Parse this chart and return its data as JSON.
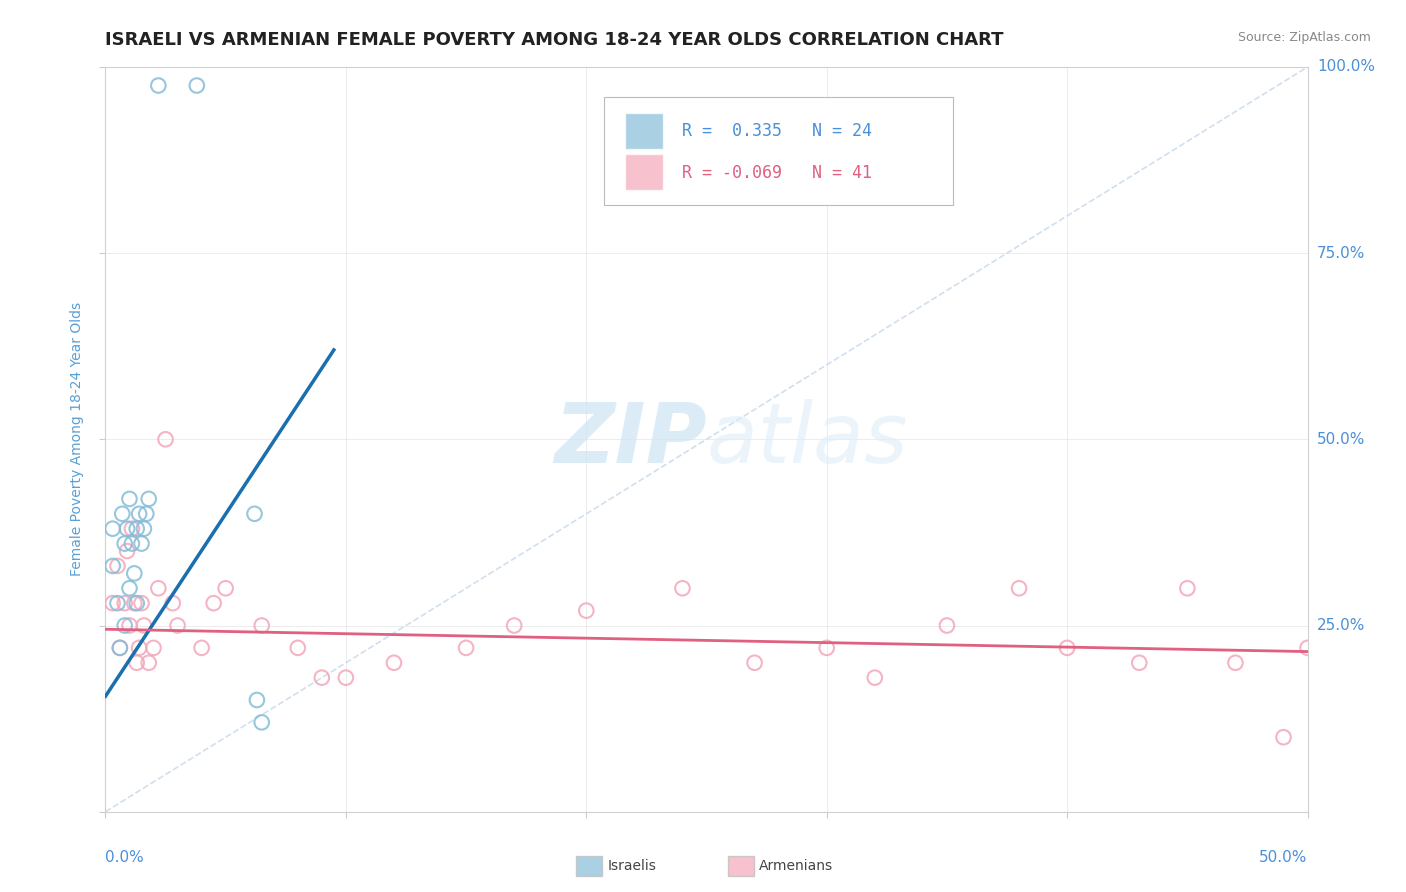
{
  "title": "ISRAELI VS ARMENIAN FEMALE POVERTY AMONG 18-24 YEAR OLDS CORRELATION CHART",
  "source": "Source: ZipAtlas.com",
  "ylabel": "Female Poverty Among 18-24 Year Olds",
  "xlim": [
    0,
    0.5
  ],
  "ylim": [
    0,
    1.0
  ],
  "watermark_zip": "ZIP",
  "watermark_atlas": "atlas",
  "legend_r1": "R =  0.335",
  "legend_n1": "N = 24",
  "legend_r2": "R = -0.069",
  "legend_n2": "N = 41",
  "israeli_color": "#85bcd8",
  "armenian_color": "#f4a7b9",
  "israeli_line_color": "#1a6faf",
  "armenian_line_color": "#e06080",
  "diag_color": "#c5d8ea",
  "background_color": "#ffffff",
  "title_fontsize": 13,
  "israelis_x": [
    0.022,
    0.038,
    0.003,
    0.003,
    0.005,
    0.006,
    0.007,
    0.008,
    0.008,
    0.009,
    0.01,
    0.01,
    0.011,
    0.012,
    0.013,
    0.013,
    0.014,
    0.015,
    0.016,
    0.017,
    0.018,
    0.062,
    0.063,
    0.065
  ],
  "israelis_y": [
    0.975,
    0.975,
    0.38,
    0.33,
    0.28,
    0.22,
    0.4,
    0.36,
    0.25,
    0.38,
    0.3,
    0.42,
    0.36,
    0.32,
    0.28,
    0.38,
    0.4,
    0.36,
    0.38,
    0.4,
    0.42,
    0.4,
    0.15,
    0.12
  ],
  "armenians_x": [
    0.003,
    0.005,
    0.006,
    0.008,
    0.009,
    0.01,
    0.011,
    0.012,
    0.013,
    0.014,
    0.015,
    0.016,
    0.018,
    0.02,
    0.022,
    0.025,
    0.028,
    0.03,
    0.04,
    0.045,
    0.05,
    0.065,
    0.08,
    0.09,
    0.1,
    0.12,
    0.15,
    0.17,
    0.2,
    0.24,
    0.27,
    0.3,
    0.32,
    0.35,
    0.38,
    0.4,
    0.43,
    0.45,
    0.47,
    0.49,
    0.5
  ],
  "armenians_y": [
    0.28,
    0.33,
    0.22,
    0.28,
    0.35,
    0.25,
    0.38,
    0.28,
    0.2,
    0.22,
    0.28,
    0.25,
    0.2,
    0.22,
    0.3,
    0.5,
    0.28,
    0.25,
    0.22,
    0.28,
    0.3,
    0.25,
    0.22,
    0.18,
    0.18,
    0.2,
    0.22,
    0.25,
    0.27,
    0.3,
    0.2,
    0.22,
    0.18,
    0.25,
    0.3,
    0.22,
    0.2,
    0.3,
    0.2,
    0.1,
    0.22
  ],
  "isr_line_x0": 0.0,
  "isr_line_y0": 0.155,
  "isr_line_x1": 0.095,
  "isr_line_y1": 0.62,
  "arm_line_x0": 0.0,
  "arm_line_y0": 0.245,
  "arm_line_x1": 0.5,
  "arm_line_y1": 0.215
}
